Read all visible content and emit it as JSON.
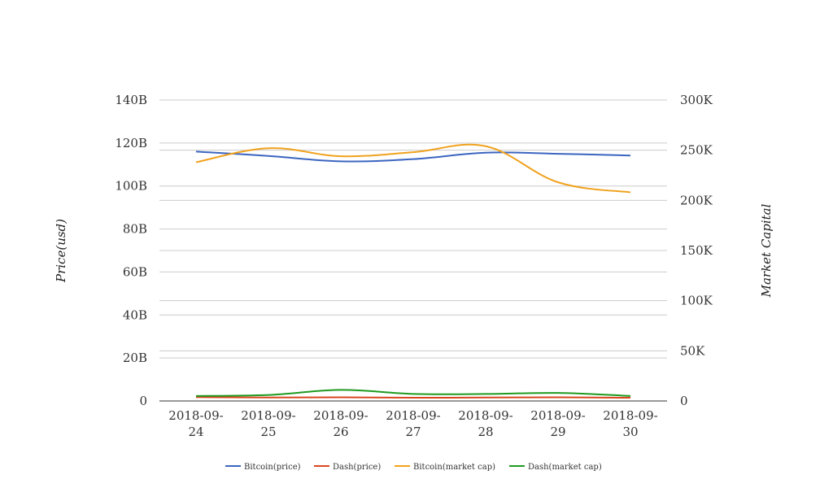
{
  "chart_data": {
    "type": "line",
    "categories": [
      "2018-09-24",
      "2018-09-25",
      "2018-09-26",
      "2018-09-27",
      "2018-09-28",
      "2018-09-29",
      "2018-09-30"
    ],
    "y_left": {
      "label": "Price(usd)",
      "range": [
        0,
        140
      ],
      "ticks": [
        0,
        20,
        40,
        60,
        80,
        100,
        120,
        140
      ],
      "tick_labels": [
        "0",
        "20B",
        "40B",
        "60B",
        "80B",
        "100B",
        "120B",
        "140B"
      ]
    },
    "y_right": {
      "label": "Market Capital",
      "range": [
        0,
        300
      ],
      "ticks": [
        0,
        50,
        100,
        150,
        200,
        250,
        300
      ],
      "tick_labels": [
        "0",
        "50K",
        "100K",
        "150K",
        "200K",
        "250K",
        "300K"
      ]
    },
    "grid": true,
    "legend_position": "bottom",
    "series": [
      {
        "name": "Bitcoin(price)",
        "axis": "left",
        "color": "#3b65c0",
        "values": [
          116,
          114,
          111.5,
          112.5,
          115.5,
          115,
          114.2
        ]
      },
      {
        "name": "Dash(price)",
        "axis": "left",
        "color": "#d9461e",
        "values": [
          1.8,
          1.6,
          1.7,
          1.5,
          1.6,
          1.7,
          1.5
        ]
      },
      {
        "name": "Bitcoin(market cap)",
        "axis": "right",
        "color": "#f0a21e",
        "values": [
          238,
          252,
          244,
          248,
          254,
          218,
          208
        ]
      },
      {
        "name": "Dash(market cap)",
        "axis": "right",
        "color": "#1f9a1f",
        "values": [
          5,
          6,
          11,
          7,
          7,
          8,
          5
        ]
      }
    ]
  }
}
